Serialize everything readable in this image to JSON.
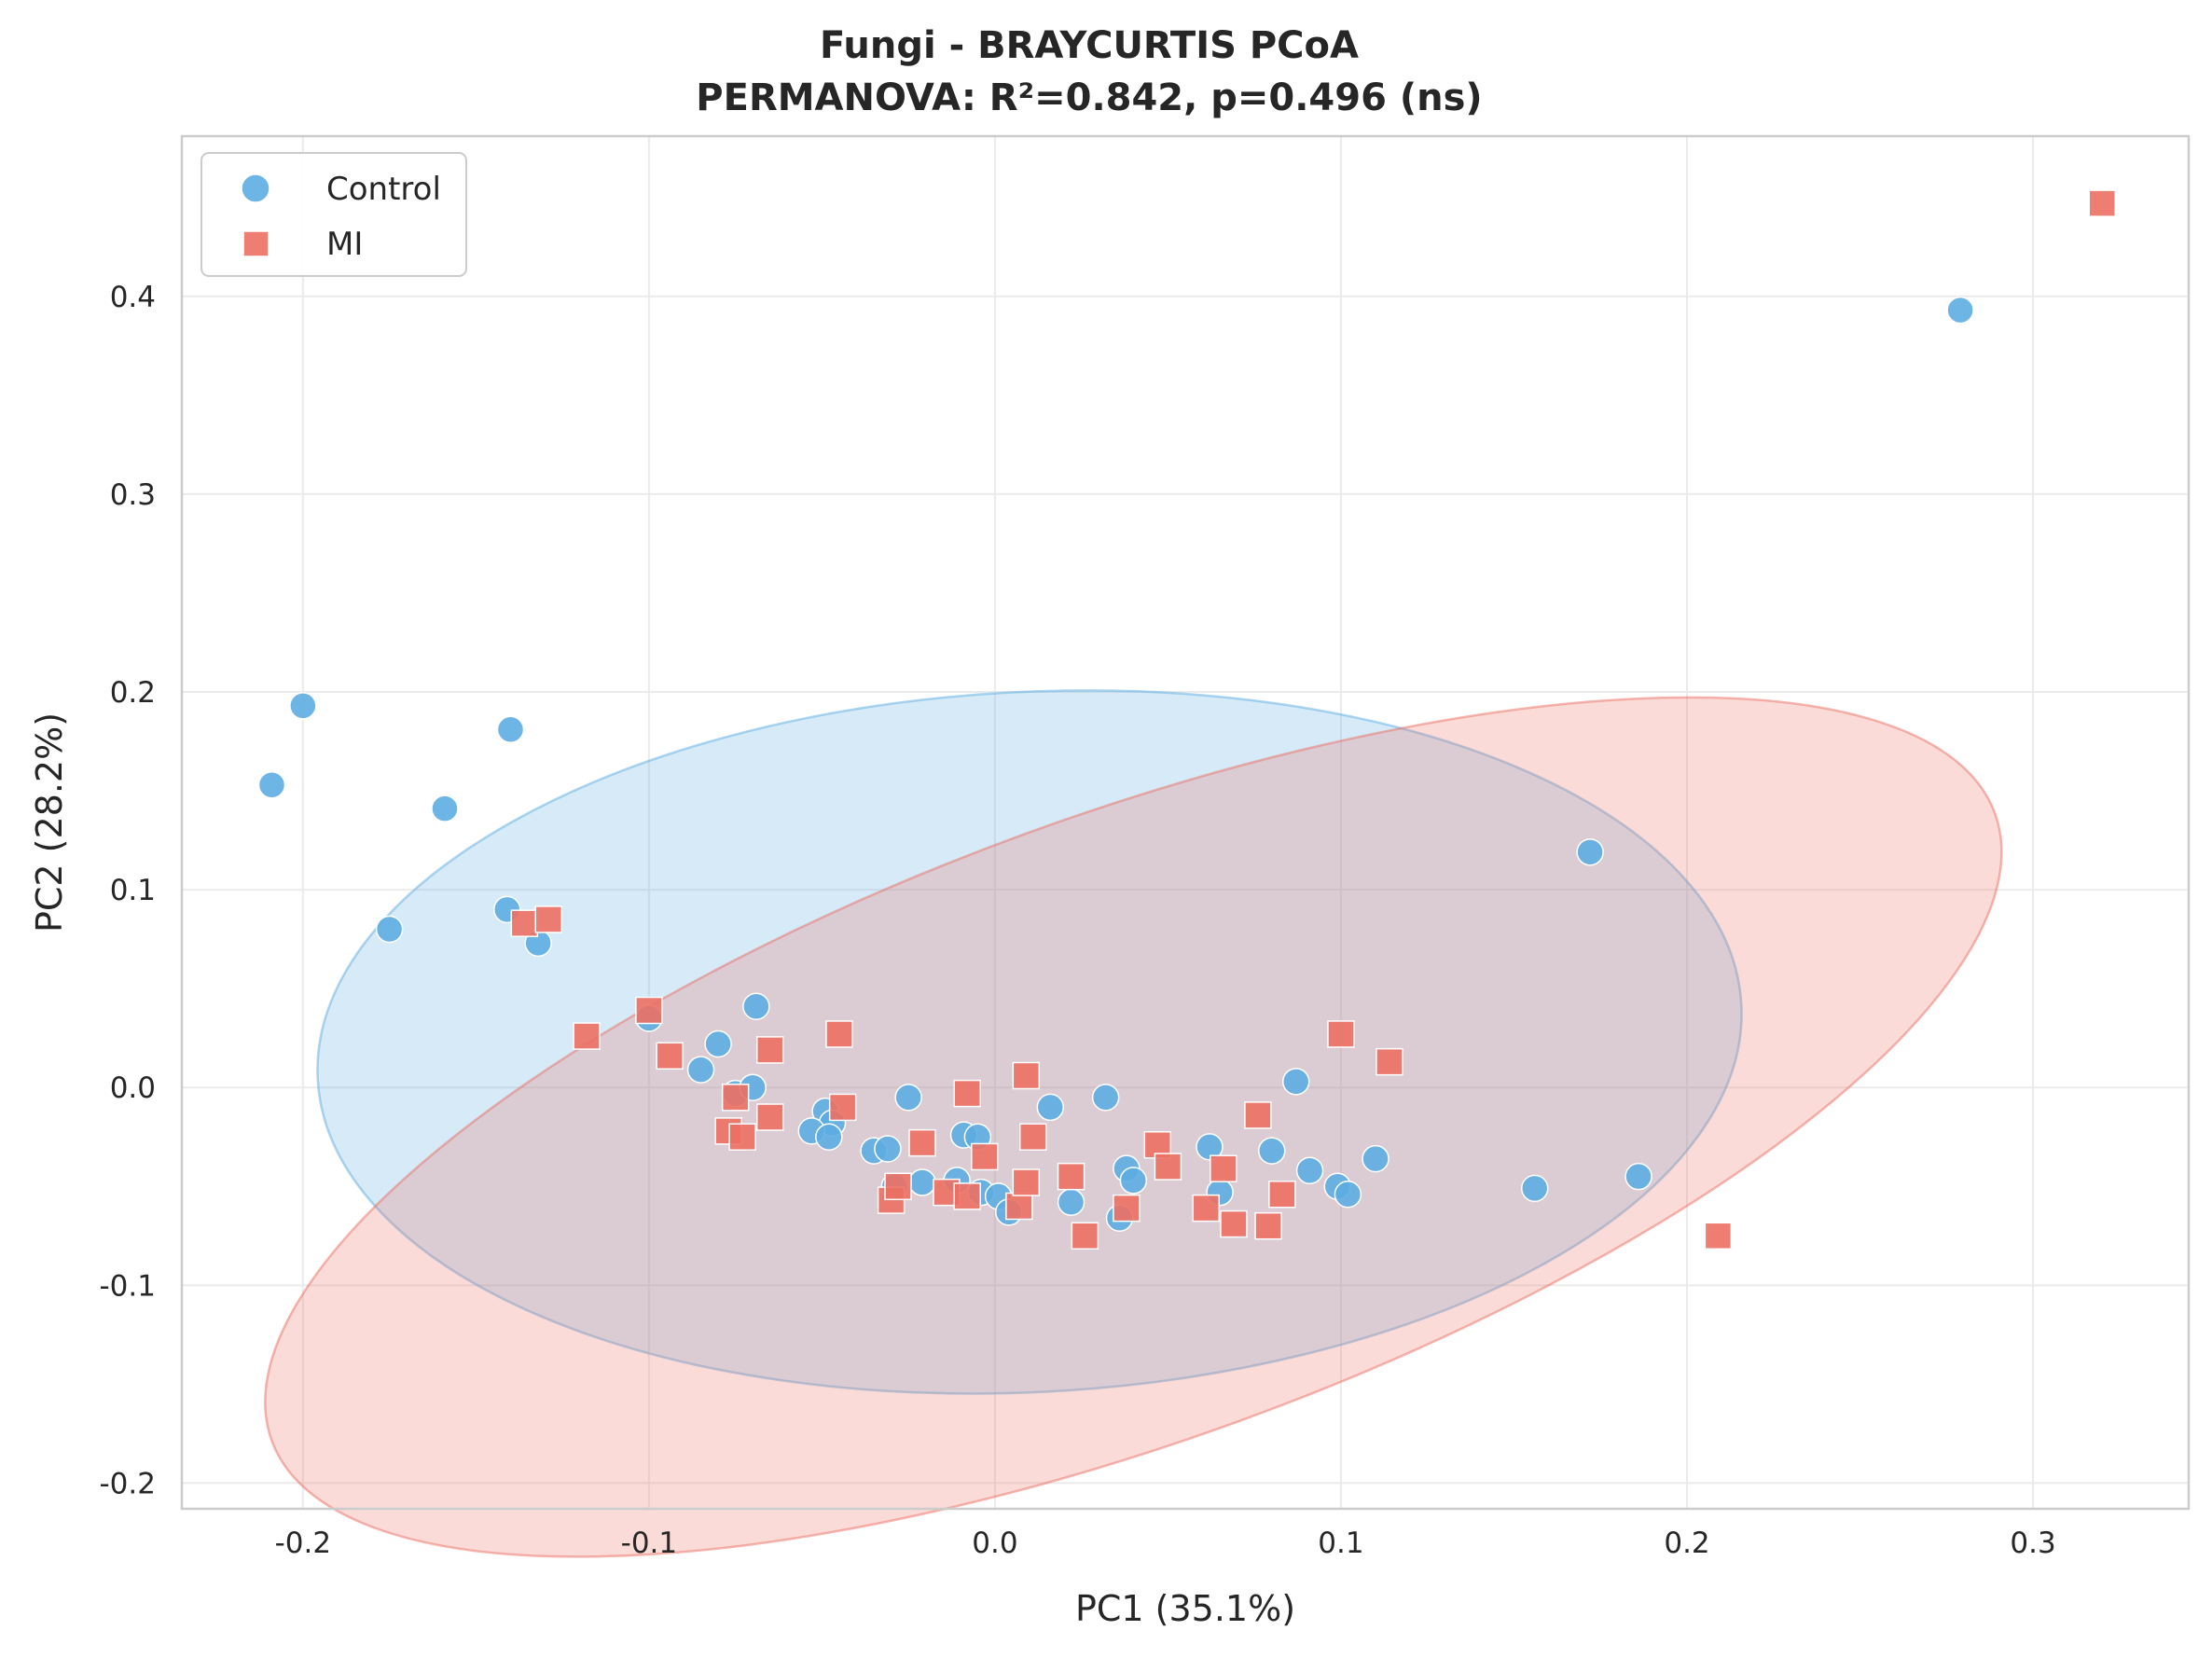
{
  "chart_data": {
    "type": "scatter",
    "title": "Fungi - BRAYCURTIS PCoA",
    "subtitle": "PERMANOVA: R²=0.842, p=0.496 (ns)",
    "xlabel": "PC1 (35.1%)",
    "ylabel": "PC2 (28.2%)",
    "xlim": [
      -0.235,
      0.345
    ],
    "ylim": [
      -0.213,
      0.481
    ],
    "xticks": [
      -0.2,
      -0.1,
      0.0,
      0.1,
      0.2,
      0.3
    ],
    "xtick_labels": [
      "-0.2",
      "-0.1",
      "0.0",
      "0.1",
      "0.2",
      "0.3"
    ],
    "yticks": [
      -0.2,
      -0.1,
      0.0,
      0.1,
      0.2,
      0.3,
      0.4
    ],
    "ytick_labels": [
      "-0.2",
      "-0.1",
      "0.0",
      "0.1",
      "0.2",
      "0.3",
      "0.4"
    ],
    "grid": true,
    "legend_position": "top-left",
    "series": [
      {
        "name": "Control",
        "marker": "circle",
        "color": "#5DADE2",
        "ellipse": {
          "cx": 0.01,
          "cy": 0.023,
          "rx": 0.206,
          "ry": 0.177,
          "angle_deg": -3
        },
        "points": [
          [
            -0.2,
            0.193
          ],
          [
            -0.209,
            0.153
          ],
          [
            -0.14,
            0.181
          ],
          [
            -0.159,
            0.141
          ],
          [
            -0.175,
            0.08
          ],
          [
            -0.141,
            0.09
          ],
          [
            -0.132,
            0.073
          ],
          [
            0.172,
            0.119
          ],
          [
            0.279,
            0.393
          ],
          [
            0.186,
            -0.045
          ],
          [
            0.156,
            -0.051
          ],
          [
            -0.1,
            0.035
          ],
          [
            -0.08,
            0.022
          ],
          [
            -0.085,
            0.009
          ],
          [
            -0.069,
            0.041
          ],
          [
            -0.075,
            -0.003
          ],
          [
            -0.07,
            0.0
          ],
          [
            -0.049,
            -0.012
          ],
          [
            -0.047,
            -0.018
          ],
          [
            -0.053,
            -0.022
          ],
          [
            -0.048,
            -0.025
          ],
          [
            -0.035,
            -0.032
          ],
          [
            -0.031,
            -0.031
          ],
          [
            -0.029,
            -0.05
          ],
          [
            -0.025,
            -0.005
          ],
          [
            -0.021,
            -0.048
          ],
          [
            -0.011,
            -0.047
          ],
          [
            -0.009,
            -0.024
          ],
          [
            -0.005,
            -0.025
          ],
          [
            -0.004,
            -0.053
          ],
          [
            0.001,
            -0.055
          ],
          [
            0.004,
            -0.063
          ],
          [
            0.016,
            -0.01
          ],
          [
            0.022,
            -0.058
          ],
          [
            0.032,
            -0.005
          ],
          [
            0.036,
            -0.066
          ],
          [
            0.038,
            -0.041
          ],
          [
            0.04,
            -0.047
          ],
          [
            0.062,
            -0.03
          ],
          [
            0.065,
            -0.053
          ],
          [
            0.08,
            -0.032
          ],
          [
            0.087,
            0.003
          ],
          [
            0.091,
            -0.042
          ],
          [
            0.099,
            -0.05
          ],
          [
            0.102,
            -0.054
          ],
          [
            0.11,
            -0.036
          ]
        ]
      },
      {
        "name": "MI",
        "marker": "square",
        "color": "#EC7063",
        "ellipse": {
          "cx": 0.04,
          "cy": -0.02,
          "rx": 0.265,
          "ry": 0.158,
          "angle_deg": -20
        },
        "points": [
          [
            0.32,
            0.447
          ],
          [
            0.209,
            -0.075
          ],
          [
            -0.136,
            0.083
          ],
          [
            -0.129,
            0.085
          ],
          [
            -0.118,
            0.026
          ],
          [
            -0.1,
            0.039
          ],
          [
            -0.094,
            0.016
          ],
          [
            -0.065,
            0.019
          ],
          [
            -0.045,
            0.027
          ],
          [
            -0.044,
            -0.01
          ],
          [
            -0.075,
            -0.005
          ],
          [
            -0.077,
            -0.022
          ],
          [
            -0.073,
            -0.025
          ],
          [
            -0.065,
            -0.015
          ],
          [
            -0.03,
            -0.057
          ],
          [
            -0.028,
            -0.05
          ],
          [
            -0.021,
            -0.028
          ],
          [
            -0.014,
            -0.053
          ],
          [
            -0.008,
            -0.055
          ],
          [
            -0.008,
            -0.003
          ],
          [
            -0.003,
            -0.035
          ],
          [
            0.007,
            -0.06
          ],
          [
            0.009,
            -0.048
          ],
          [
            0.009,
            0.006
          ],
          [
            0.011,
            -0.025
          ],
          [
            0.022,
            -0.045
          ],
          [
            0.026,
            -0.075
          ],
          [
            0.038,
            -0.061
          ],
          [
            0.047,
            -0.029
          ],
          [
            0.05,
            -0.04
          ],
          [
            0.061,
            -0.061
          ],
          [
            0.066,
            -0.041
          ],
          [
            0.069,
            -0.069
          ],
          [
            0.076,
            -0.014
          ],
          [
            0.079,
            -0.07
          ],
          [
            0.083,
            -0.054
          ],
          [
            0.1,
            0.027
          ],
          [
            0.114,
            0.013
          ]
        ]
      }
    ]
  }
}
